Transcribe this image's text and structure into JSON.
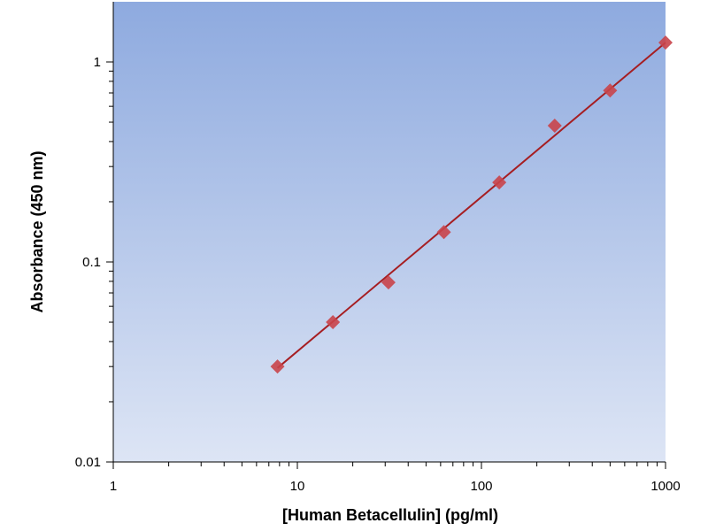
{
  "chart_data": {
    "type": "scatter",
    "title": "",
    "xlabel": "[Human Betacellulin] (pg/ml)",
    "ylabel": "Absorbance (450 nm)",
    "x_scale": "log",
    "y_scale": "log",
    "xlim": [
      1,
      1000
    ],
    "ylim": [
      0.01,
      2
    ],
    "x_ticks": [
      1,
      10,
      100,
      1000
    ],
    "x_tick_labels": [
      "1",
      "10",
      "100",
      "1000"
    ],
    "y_ticks": [
      0.01,
      0.1,
      1
    ],
    "y_tick_labels": [
      "0.01",
      "0.1",
      "1"
    ],
    "grid": false,
    "legend": "none",
    "series": [
      {
        "x": [
          7.8,
          15.6,
          31.25,
          62.5,
          125,
          250,
          500,
          1000
        ],
        "y": [
          0.03,
          0.05,
          0.079,
          0.141,
          0.25,
          0.48,
          0.72,
          1.25
        ],
        "marker": "diamond",
        "color": "#c9444a"
      }
    ],
    "fit_line": {
      "x": [
        7.8,
        1000
      ],
      "y": [
        0.0295,
        1.25
      ],
      "color": "#a61e22"
    },
    "background_gradient": [
      "#8eaadf",
      "#dde5f5"
    ]
  }
}
